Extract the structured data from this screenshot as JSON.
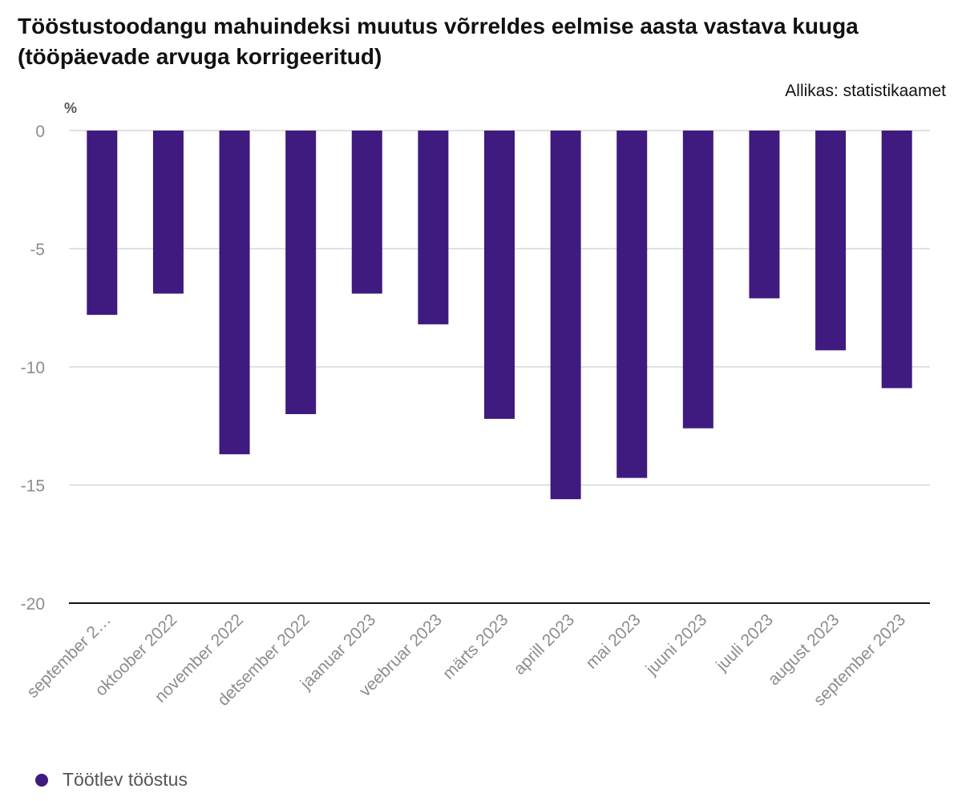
{
  "header": {
    "title": "Tööstustoodangu mahuindeksi muutus võrreldes eelmise aasta vastava kuuga (tööpäevade arvuga korrigeeritud)",
    "source": "Allikas: statistikaamet",
    "unit": "%"
  },
  "colors": {
    "bar": "#3f1a7f",
    "grid": "#d6d6d6",
    "baseline": "#111111",
    "tick_label": "#8c8c8c"
  },
  "chart_data": {
    "type": "bar",
    "title": "Tööstustoodangu mahuindeksi muutus võrreldes eelmise aasta vastava kuuga (tööpäevade arvuga korrigeeritud)",
    "ylabel": "%",
    "xlabel": "",
    "categories": [
      "september 2…",
      "oktoober 2022",
      "november 2022",
      "detsember 2022",
      "jaanuar 2023",
      "veebruar 2023",
      "märts 2023",
      "aprill 2023",
      "mai 2023",
      "juuni 2023",
      "juuli 2023",
      "august 2023",
      "september 2023"
    ],
    "series": [
      {
        "name": "Töötlev tööstus",
        "values": [
          -7.8,
          -6.9,
          -13.7,
          -12.0,
          -6.9,
          -8.2,
          -12.2,
          -15.6,
          -14.7,
          -12.6,
          -7.1,
          -9.3,
          -10.9
        ]
      }
    ],
    "ylim": [
      -20,
      0
    ],
    "yticks": [
      0,
      -5,
      -10,
      -15,
      -20
    ],
    "grid": true,
    "legend": "bottom-left"
  }
}
